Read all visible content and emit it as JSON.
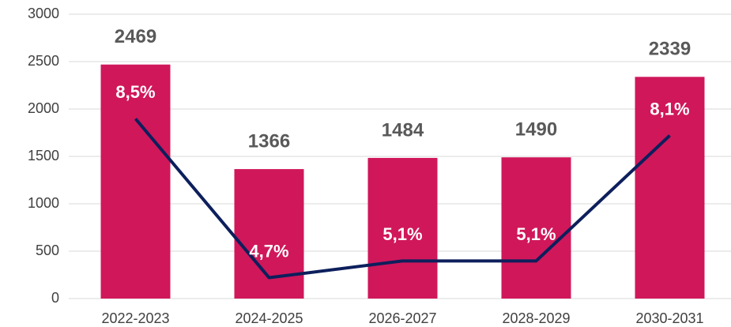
{
  "chart_data": {
    "type": "combo",
    "categories": [
      "2022-2023",
      "2024-2025",
      "2026-2027",
      "2028-2029",
      "2030-2031"
    ],
    "series": [
      {
        "type": "bar",
        "color": "#d0175a",
        "values": [
          2469,
          1366,
          1484,
          1490,
          2339
        ]
      },
      {
        "type": "line",
        "axis": "y2",
        "color": "#0d1f5c",
        "values": [
          8.5,
          4.7,
          5.1,
          5.1,
          8.1
        ],
        "value_labels": [
          "8,5%",
          "4,7%",
          "5,1%",
          "5,1%",
          "8,1%"
        ]
      }
    ],
    "ylim": [
      0,
      3000
    ],
    "yticks": [
      0,
      500,
      1000,
      1500,
      2000,
      2500,
      3000
    ],
    "y2lim": [
      4.2,
      11
    ],
    "grid": true
  }
}
